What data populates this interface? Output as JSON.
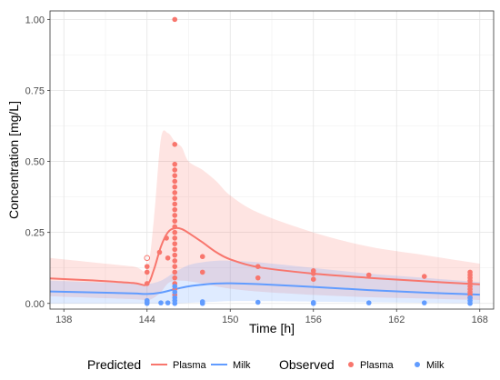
{
  "chart_data": {
    "type": "line",
    "xlabel": "Time [h]",
    "ylabel": "Concentration [mg/L]",
    "xlim": [
      137,
      169
    ],
    "ylim": [
      -0.02,
      1.03
    ],
    "x_ticks": [
      138,
      144,
      150,
      156,
      162,
      168
    ],
    "y_ticks": [
      0.0,
      0.25,
      0.5,
      0.75,
      1.0
    ],
    "y_tick_labels": [
      "0.00",
      "0.25",
      "0.50",
      "0.75",
      "1.00"
    ],
    "grid": true,
    "colors": {
      "plasma": "#F8766D",
      "milk": "#619CFF"
    },
    "series": [
      {
        "name": "Plasma",
        "kind": "predicted",
        "color": "#F8766D",
        "x": [
          137,
          140,
          143,
          144,
          144.5,
          145,
          145.5,
          146,
          146.5,
          147,
          148,
          149,
          150,
          152,
          156,
          160,
          164,
          168
        ],
        "y": [
          0.088,
          0.081,
          0.072,
          0.067,
          0.12,
          0.2,
          0.25,
          0.265,
          0.262,
          0.248,
          0.215,
          0.18,
          0.155,
          0.128,
          0.105,
          0.09,
          0.078,
          0.067
        ],
        "band_lower": [
          0.025,
          0.02,
          0.015,
          0.012,
          0.02,
          0.04,
          0.07,
          0.08,
          0.08,
          0.078,
          0.07,
          0.06,
          0.052,
          0.042,
          0.03,
          0.022,
          0.017,
          0.012
        ],
        "band_upper": [
          0.16,
          0.145,
          0.13,
          0.125,
          0.3,
          0.58,
          0.6,
          0.57,
          0.55,
          0.5,
          0.47,
          0.43,
          0.38,
          0.32,
          0.25,
          0.2,
          0.17,
          0.14
        ]
      },
      {
        "name": "Milk",
        "kind": "predicted",
        "color": "#619CFF",
        "x": [
          137,
          140,
          143,
          144,
          145,
          146,
          147,
          148,
          149,
          150,
          152,
          156,
          160,
          164,
          168
        ],
        "y": [
          0.042,
          0.039,
          0.035,
          0.033,
          0.038,
          0.05,
          0.06,
          0.066,
          0.07,
          0.071,
          0.068,
          0.058,
          0.047,
          0.038,
          0.031
        ],
        "band_lower": [
          0.0,
          0.0,
          0.0,
          0.0,
          0.0,
          0.0,
          0.002,
          0.004,
          0.006,
          0.008,
          0.008,
          0.006,
          0.004,
          0.002,
          0.0
        ],
        "band_upper": [
          0.08,
          0.075,
          0.07,
          0.068,
          0.08,
          0.11,
          0.135,
          0.145,
          0.15,
          0.15,
          0.145,
          0.125,
          0.105,
          0.09,
          0.075
        ]
      },
      {
        "name": "Plasma",
        "kind": "observed",
        "color": "#F8766D",
        "points": [
          [
            144,
            0.16,
            true
          ],
          [
            144,
            0.13,
            false
          ],
          [
            144,
            0.11,
            false
          ],
          [
            144,
            0.07,
            false
          ],
          [
            144.9,
            0.18,
            false
          ],
          [
            145.4,
            0.23,
            false
          ],
          [
            145.5,
            0.16,
            false
          ],
          [
            146,
            1.0,
            false
          ],
          [
            146,
            0.56,
            false
          ],
          [
            146,
            0.49,
            false
          ],
          [
            146,
            0.47,
            false
          ],
          [
            146,
            0.45,
            false
          ],
          [
            146,
            0.43,
            false
          ],
          [
            146,
            0.41,
            false
          ],
          [
            146,
            0.39,
            false
          ],
          [
            146,
            0.37,
            false
          ],
          [
            146,
            0.35,
            false
          ],
          [
            146,
            0.33,
            false
          ],
          [
            146,
            0.31,
            false
          ],
          [
            146,
            0.29,
            false
          ],
          [
            146,
            0.27,
            false
          ],
          [
            146,
            0.25,
            false
          ],
          [
            146,
            0.23,
            false
          ],
          [
            146,
            0.21,
            false
          ],
          [
            146,
            0.19,
            false
          ],
          [
            146,
            0.17,
            false
          ],
          [
            146,
            0.15,
            false
          ],
          [
            146,
            0.13,
            false
          ],
          [
            146,
            0.11,
            false
          ],
          [
            146,
            0.09,
            false
          ],
          [
            146,
            0.07,
            false
          ],
          [
            146,
            0.05,
            false
          ],
          [
            146,
            0.03,
            false
          ],
          [
            148,
            0.165,
            false
          ],
          [
            148,
            0.11,
            false
          ],
          [
            152,
            0.13,
            false
          ],
          [
            152,
            0.09,
            false
          ],
          [
            156,
            0.115,
            false
          ],
          [
            156,
            0.105,
            false
          ],
          [
            156,
            0.085,
            false
          ],
          [
            160,
            0.1,
            false
          ],
          [
            164,
            0.095,
            false
          ],
          [
            167.3,
            0.11,
            false
          ],
          [
            167.3,
            0.1,
            false
          ],
          [
            167.3,
            0.09,
            false
          ],
          [
            167.3,
            0.08,
            false
          ],
          [
            167.3,
            0.07,
            false
          ],
          [
            167.3,
            0.06,
            false
          ],
          [
            167.3,
            0.05,
            false
          ],
          [
            167.3,
            0.04,
            false
          ],
          [
            167.3,
            0.03,
            false
          ],
          [
            167.3,
            0.02,
            false
          ]
        ]
      },
      {
        "name": "Milk",
        "kind": "observed",
        "color": "#619CFF",
        "points": [
          [
            144,
            0.01
          ],
          [
            144,
            0.005
          ],
          [
            144,
            0.0
          ],
          [
            145,
            0.002
          ],
          [
            145.5,
            0.002
          ],
          [
            146,
            0.06
          ],
          [
            146,
            0.04
          ],
          [
            146,
            0.02
          ],
          [
            146,
            0.01
          ],
          [
            146,
            0.0
          ],
          [
            148,
            0.006
          ],
          [
            148,
            0.0
          ],
          [
            152,
            0.004
          ],
          [
            156,
            0.003
          ],
          [
            156,
            0.0
          ],
          [
            160,
            0.002
          ],
          [
            164,
            0.002
          ],
          [
            167.3,
            0.02
          ],
          [
            167.3,
            0.01
          ],
          [
            167.3,
            0.0
          ]
        ]
      }
    ],
    "legend": {
      "position": "bottom",
      "predicted_title": "Predicted",
      "observed_title": "Observed",
      "items": [
        "Plasma",
        "Milk"
      ]
    }
  }
}
